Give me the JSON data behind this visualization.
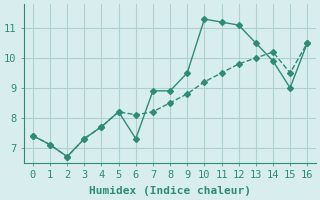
{
  "line1_x": [
    0,
    1,
    2,
    3,
    4,
    5,
    6,
    7,
    8,
    9,
    10,
    11,
    12,
    13,
    14,
    15,
    16
  ],
  "line1_y": [
    7.4,
    7.1,
    6.7,
    7.3,
    7.7,
    8.2,
    7.3,
    8.9,
    8.9,
    9.5,
    11.3,
    11.2,
    11.1,
    10.5,
    9.9,
    9.0,
    10.5
  ],
  "line2_x": [
    0,
    1,
    2,
    3,
    4,
    5,
    6,
    7,
    8,
    9,
    10,
    11,
    12,
    13,
    14,
    15,
    16
  ],
  "line2_y": [
    7.4,
    7.1,
    6.7,
    7.3,
    7.7,
    8.2,
    8.1,
    8.2,
    8.5,
    8.8,
    9.2,
    9.5,
    9.8,
    10.0,
    10.2,
    9.5,
    10.5
  ],
  "color": "#2e8b74",
  "bg_color": "#d8eeee",
  "grid_color": "#b0d0d0",
  "xlabel": "Humidex (Indice chaleur)",
  "ylim": [
    6.5,
    11.8
  ],
  "xlim": [
    -0.5,
    16.5
  ],
  "yticks": [
    7,
    8,
    9,
    10,
    11
  ],
  "xticks": [
    0,
    1,
    2,
    3,
    4,
    5,
    6,
    7,
    8,
    9,
    10,
    11,
    12,
    13,
    14,
    15,
    16
  ],
  "xlabel_fontsize": 8,
  "tick_fontsize": 7.5
}
